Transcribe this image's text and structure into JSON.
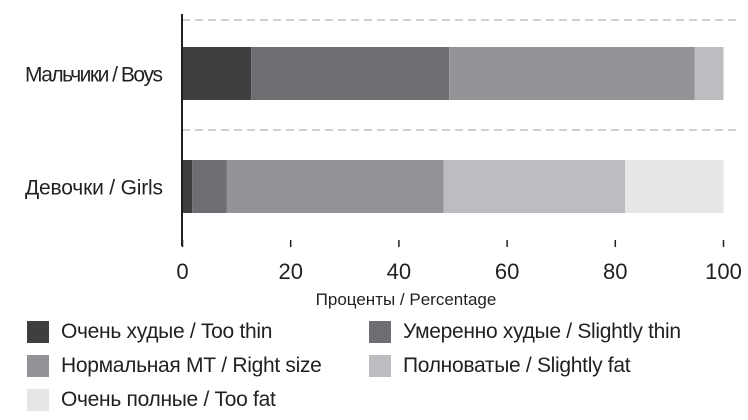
{
  "chart_data": {
    "type": "bar",
    "orientation": "horizontal",
    "stacked": true,
    "categories": [
      "Мальчики / Boys",
      "Девочки / Girls"
    ],
    "series": [
      {
        "name": "Очень худые / Too thin",
        "color": "#3f3f41",
        "values": [
          12.7,
          1.8
        ]
      },
      {
        "name": "Умеренно худые / Slightly thin",
        "color": "#6d6e71",
        "values": [
          36.6,
          6.4
        ]
      },
      {
        "name": "Нормальная МТ / Right size",
        "color": "#939497",
        "values": [
          45.4,
          40.1
        ]
      },
      {
        "name": "Полноватые / Slightly fat",
        "color": "#bcbdc0",
        "values": [
          5.3,
          33.5
        ]
      },
      {
        "name": "Очень полные / Too fat",
        "color": "#e6e6e7",
        "values": [
          0,
          18.2
        ]
      }
    ],
    "xlabel": "Проценты / Percentage",
    "ylabel": "",
    "xlim": [
      0,
      100
    ],
    "xticks": [
      "0",
      "20",
      "40",
      "60",
      "80",
      "100"
    ],
    "grid": "dashed separators between categories",
    "legend": "bottom"
  }
}
